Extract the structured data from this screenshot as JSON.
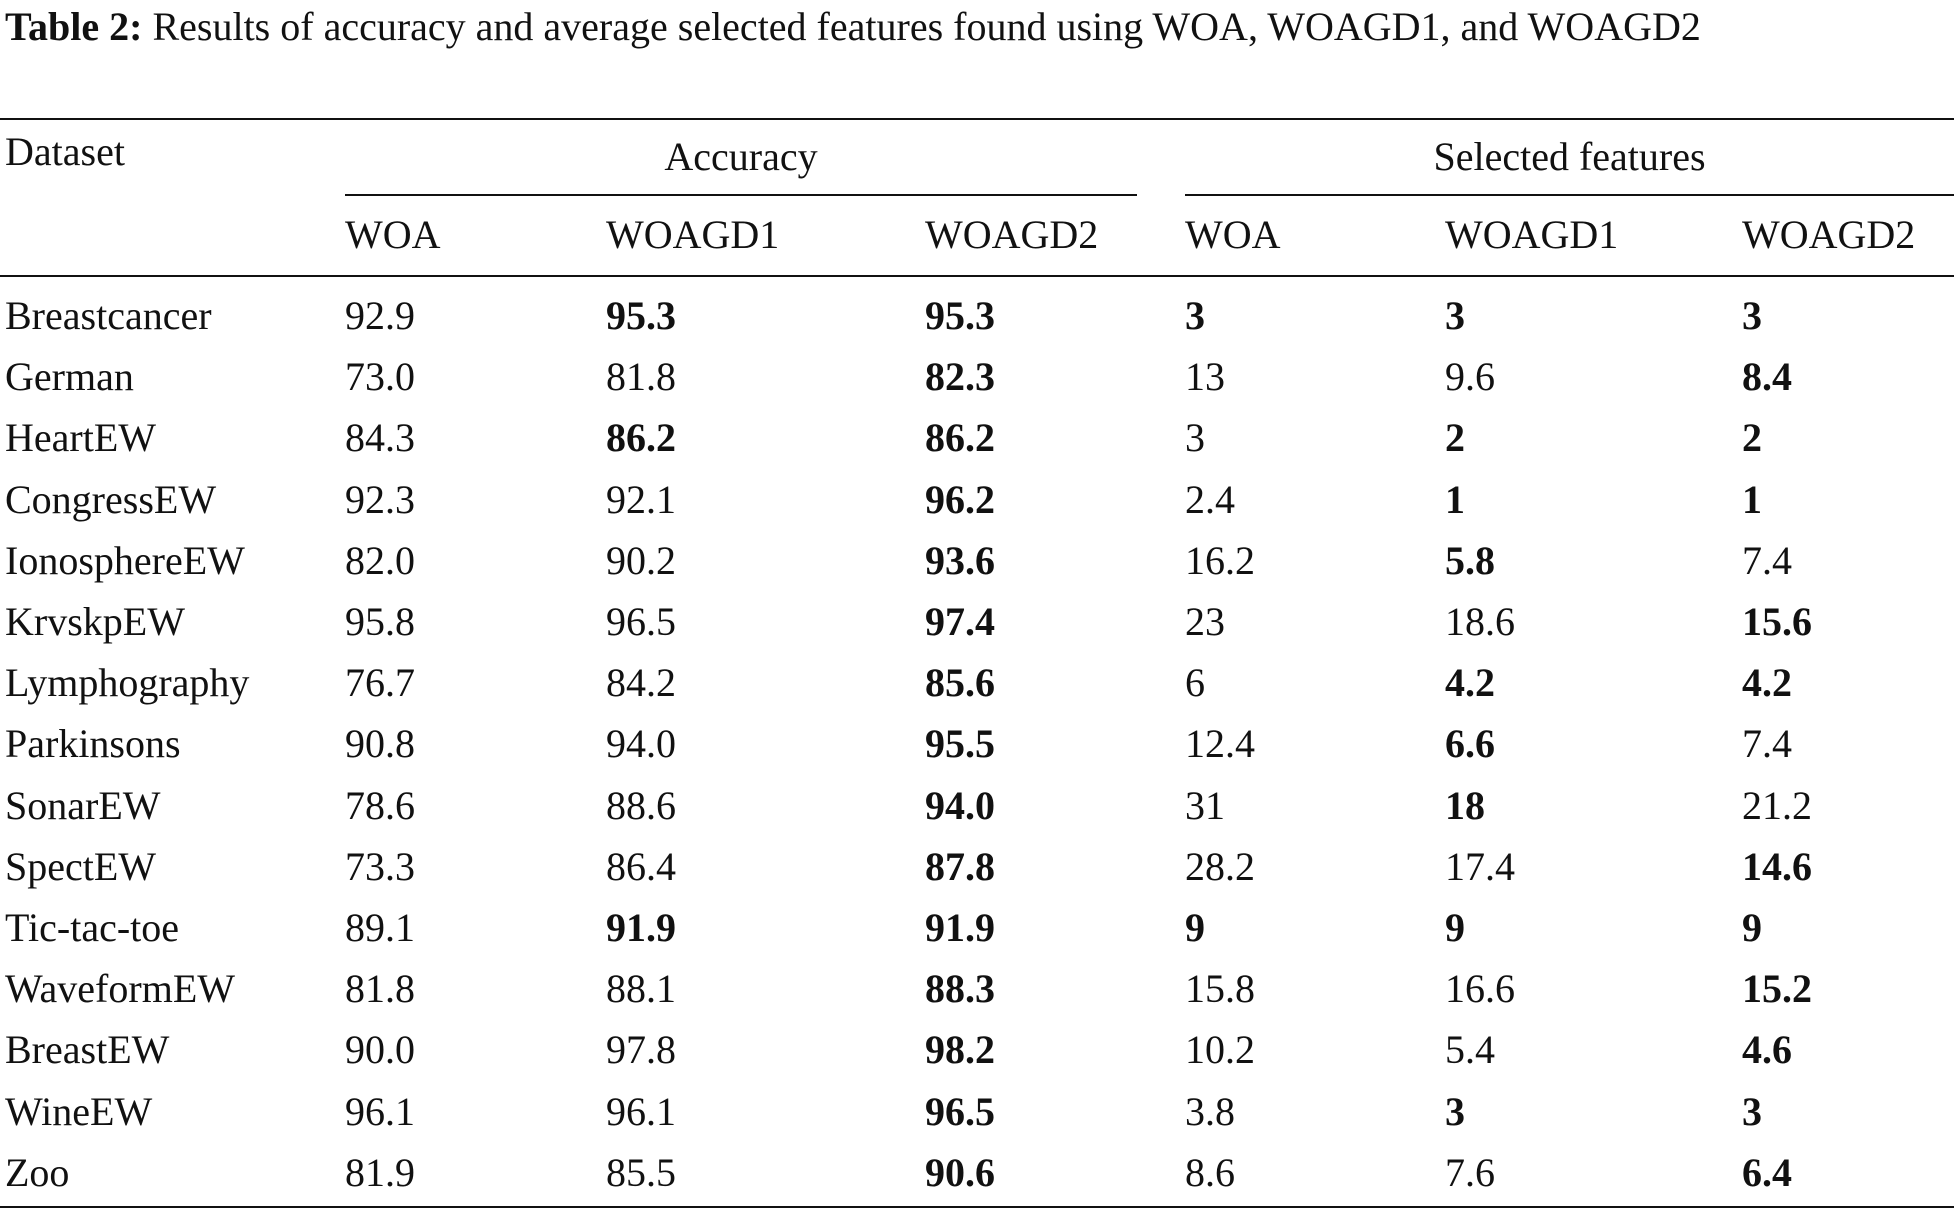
{
  "caption": {
    "label": "Table 2:",
    "text": " Results of accuracy and average selected features found using WOA, WOAGD1, and WOAGD2"
  },
  "header": {
    "dataset": "Dataset",
    "accuracy": "Accuracy",
    "selected_features": "Selected features",
    "sub": [
      "WOA",
      "WOAGD1",
      "WOAGD2",
      "WOA",
      "WOAGD1",
      "WOAGD2"
    ]
  },
  "rows": [
    {
      "dataset": "Breastcancer",
      "values": [
        "92.9",
        "95.3",
        "95.3",
        "3",
        "3",
        "3"
      ],
      "bold": [
        false,
        true,
        true,
        true,
        true,
        true
      ]
    },
    {
      "dataset": "German",
      "values": [
        "73.0",
        "81.8",
        "82.3",
        "13",
        "9.6",
        "8.4"
      ],
      "bold": [
        false,
        false,
        true,
        false,
        false,
        true
      ]
    },
    {
      "dataset": "HeartEW",
      "values": [
        "84.3",
        "86.2",
        "86.2",
        "3",
        "2",
        "2"
      ],
      "bold": [
        false,
        true,
        true,
        false,
        true,
        true
      ]
    },
    {
      "dataset": "CongressEW",
      "values": [
        "92.3",
        "92.1",
        "96.2",
        "2.4",
        "1",
        "1"
      ],
      "bold": [
        false,
        false,
        true,
        false,
        true,
        true
      ]
    },
    {
      "dataset": "IonosphereEW",
      "values": [
        "82.0",
        "90.2",
        "93.6",
        "16.2",
        "5.8",
        "7.4"
      ],
      "bold": [
        false,
        false,
        true,
        false,
        true,
        false
      ]
    },
    {
      "dataset": "KrvskpEW",
      "values": [
        "95.8",
        "96.5",
        "97.4",
        "23",
        "18.6",
        "15.6"
      ],
      "bold": [
        false,
        false,
        true,
        false,
        false,
        true
      ]
    },
    {
      "dataset": "Lymphography",
      "values": [
        "76.7",
        "84.2",
        "85.6",
        "6",
        "4.2",
        "4.2"
      ],
      "bold": [
        false,
        false,
        true,
        false,
        true,
        true
      ]
    },
    {
      "dataset": "Parkinsons",
      "values": [
        "90.8",
        "94.0",
        "95.5",
        "12.4",
        "6.6",
        "7.4"
      ],
      "bold": [
        false,
        false,
        true,
        false,
        true,
        false
      ]
    },
    {
      "dataset": "SonarEW",
      "values": [
        "78.6",
        "88.6",
        "94.0",
        "31",
        "18",
        "21.2"
      ],
      "bold": [
        false,
        false,
        true,
        false,
        true,
        false
      ]
    },
    {
      "dataset": "SpectEW",
      "values": [
        "73.3",
        "86.4",
        "87.8",
        "28.2",
        "17.4",
        "14.6"
      ],
      "bold": [
        false,
        false,
        true,
        false,
        false,
        true
      ]
    },
    {
      "dataset": "Tic-tac-toe",
      "values": [
        "89.1",
        "91.9",
        "91.9",
        "9",
        "9",
        "9"
      ],
      "bold": [
        false,
        true,
        true,
        true,
        true,
        true
      ]
    },
    {
      "dataset": "WaveformEW",
      "values": [
        "81.8",
        "88.1",
        "88.3",
        "15.8",
        "16.6",
        "15.2"
      ],
      "bold": [
        false,
        false,
        true,
        false,
        false,
        true
      ]
    },
    {
      "dataset": "BreastEW",
      "values": [
        "90.0",
        "97.8",
        "98.2",
        "10.2",
        "5.4",
        "4.6"
      ],
      "bold": [
        false,
        false,
        true,
        false,
        false,
        true
      ]
    },
    {
      "dataset": "WineEW",
      "values": [
        "96.1",
        "96.1",
        "96.5",
        "3.8",
        "3",
        "3"
      ],
      "bold": [
        false,
        false,
        true,
        false,
        true,
        true
      ]
    },
    {
      "dataset": "Zoo",
      "values": [
        "81.9",
        "85.5",
        "90.6",
        "8.6",
        "7.6",
        "6.4"
      ],
      "bold": [
        false,
        false,
        true,
        false,
        false,
        true
      ]
    }
  ]
}
